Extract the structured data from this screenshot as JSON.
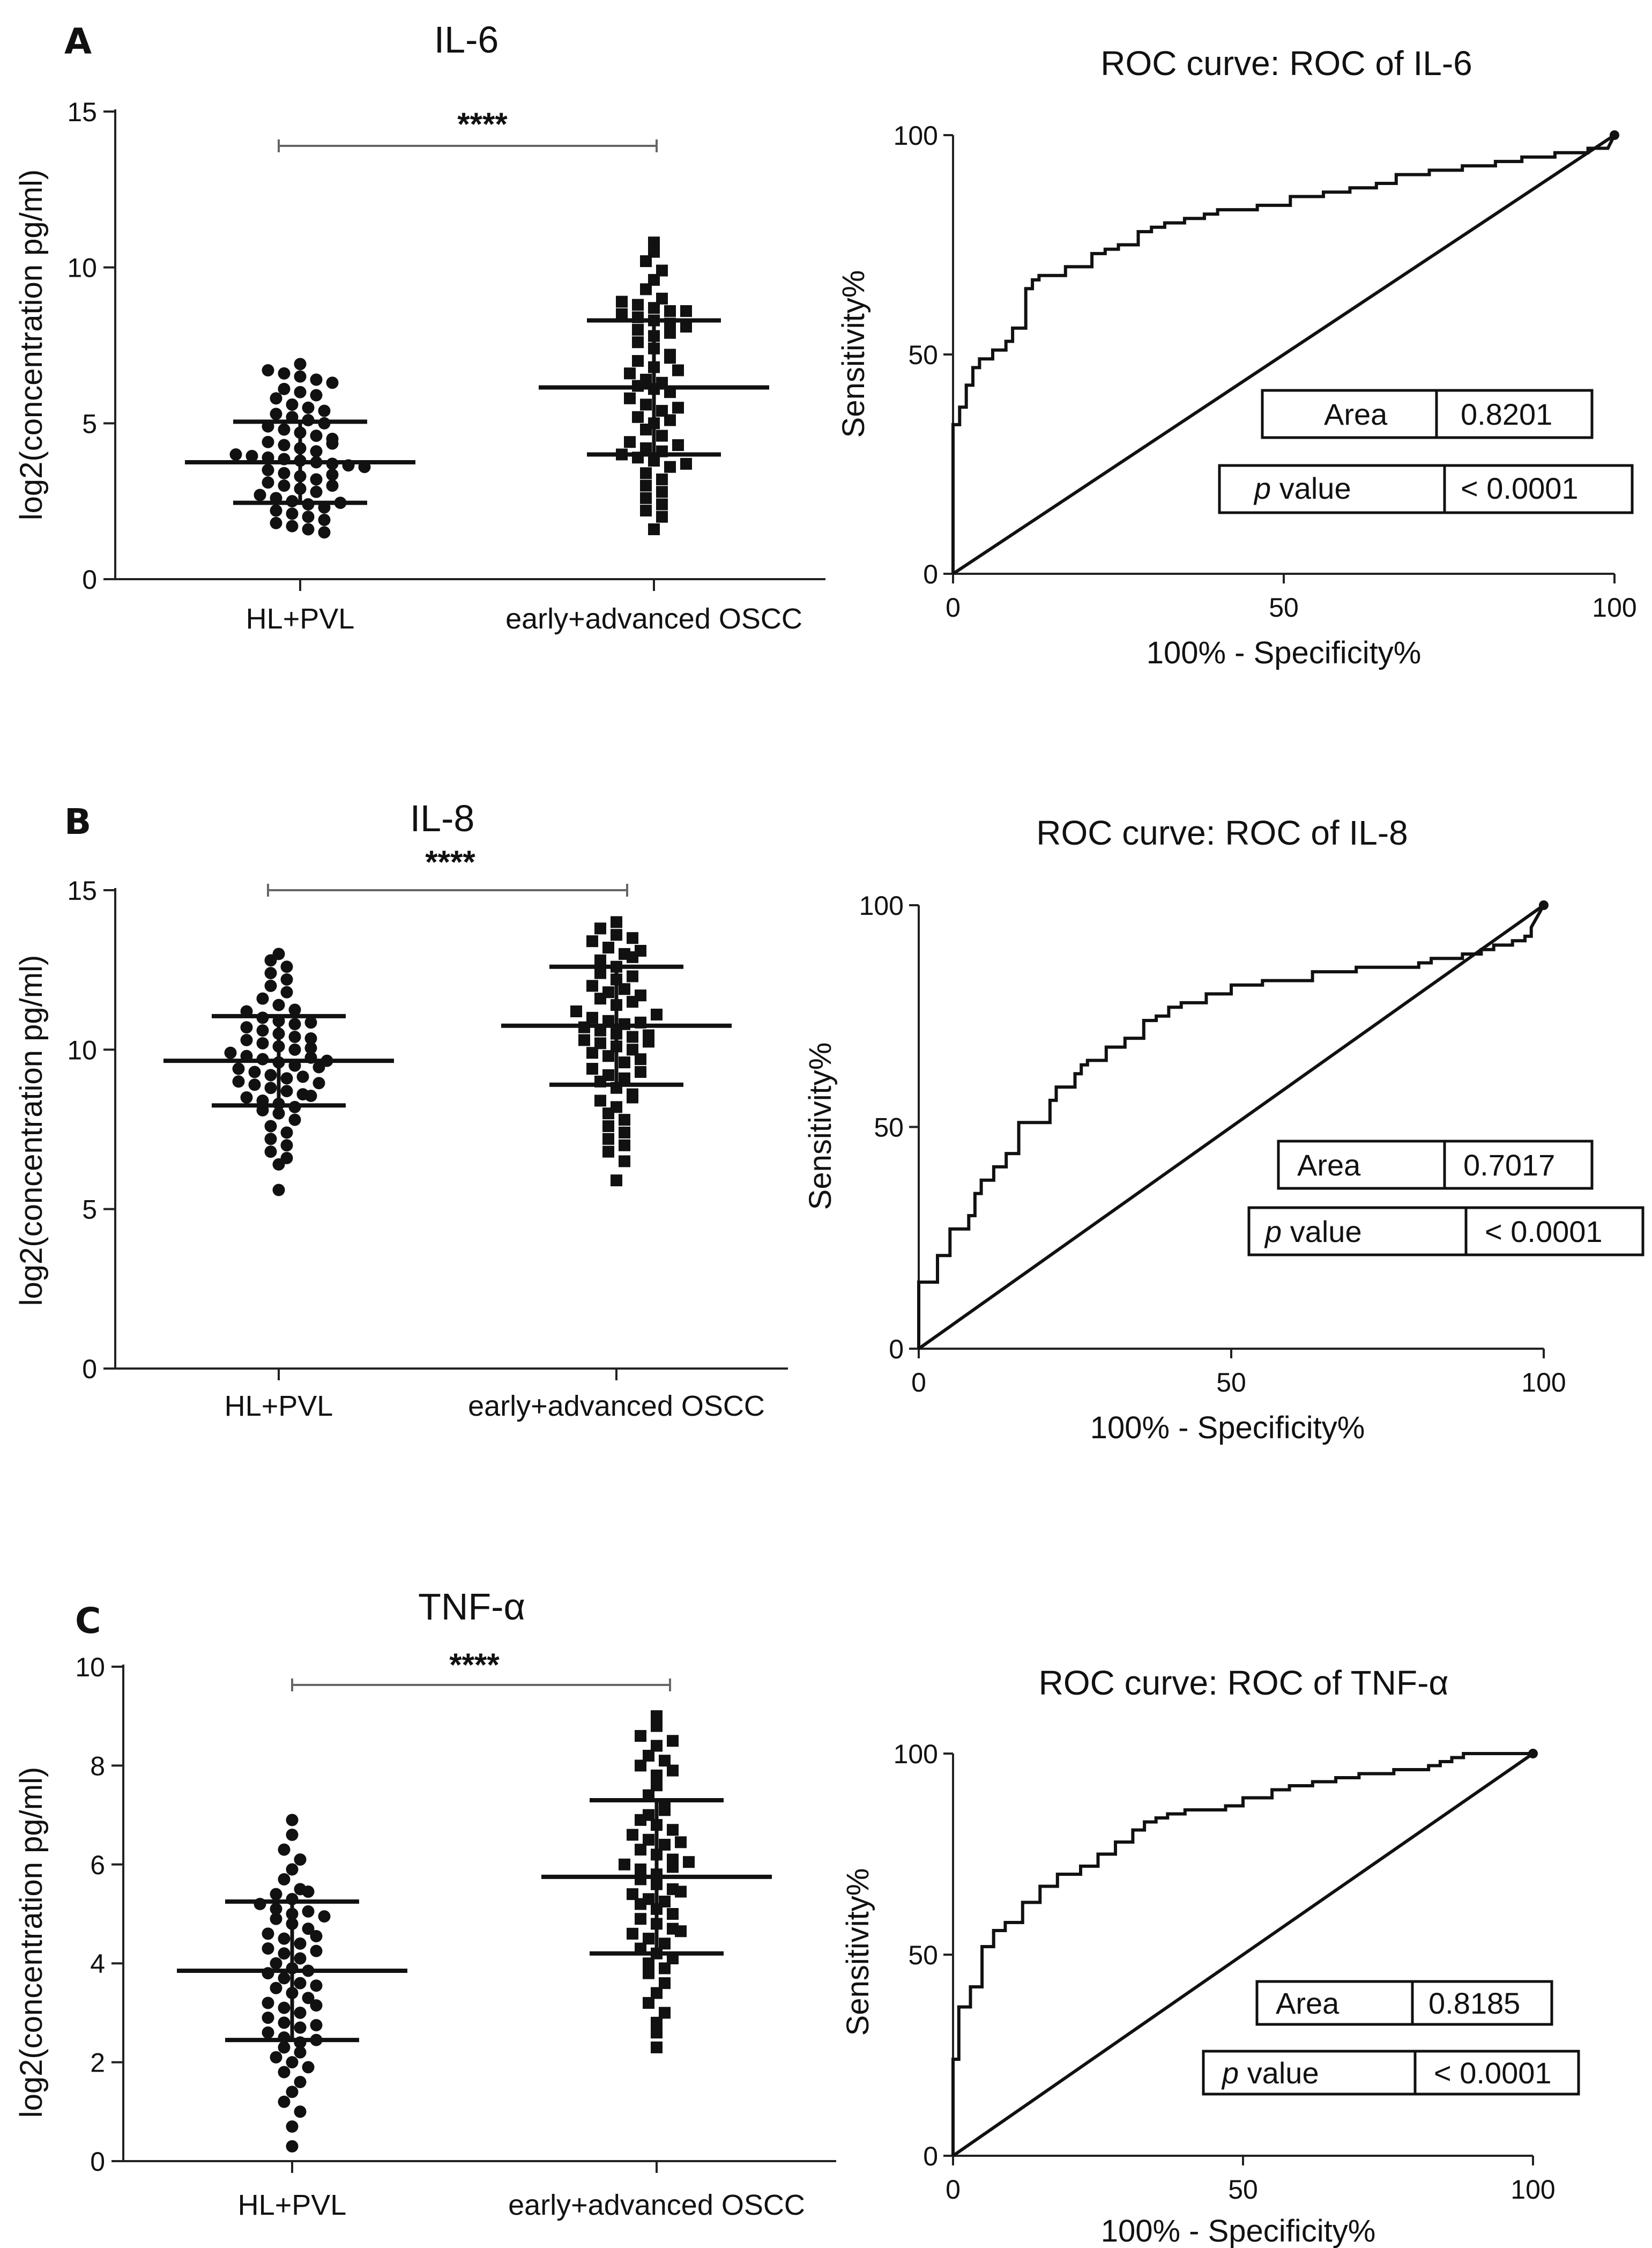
{
  "chart_data": [
    {
      "type": "scatter",
      "panel_letter": "A",
      "title": "IL-6",
      "ylabel": "log2(concentration pg/ml)",
      "ylim": [
        0,
        15
      ],
      "yticks": [
        0,
        5,
        10,
        15
      ],
      "categories": [
        "HL+PVL",
        "early+advanced OSCC"
      ],
      "significance": "****",
      "groups": [
        {
          "name": "HL+PVL",
          "marker": "circle",
          "mean": 3.75,
          "sd_low": 2.45,
          "sd_high": 5.05,
          "values": [
            6.9,
            6.7,
            6.6,
            6.5,
            6.4,
            6.3,
            6.1,
            6.0,
            5.9,
            5.8,
            5.6,
            5.5,
            5.4,
            5.3,
            5.2,
            5.1,
            5.0,
            4.9,
            4.8,
            4.7,
            4.6,
            4.5,
            4.4,
            4.3,
            4.2,
            4.1,
            4.0,
            3.95,
            3.9,
            3.85,
            3.8,
            3.75,
            3.7,
            3.65,
            3.6,
            3.5,
            3.4,
            3.3,
            3.2,
            3.1,
            3.0,
            2.9,
            2.8,
            2.7,
            2.6,
            2.5,
            2.4,
            2.3,
            2.2,
            2.1,
            2.0,
            1.9,
            1.8,
            1.7,
            1.6,
            1.5,
            2.45,
            3.35,
            4.35,
            3.0
          ]
        },
        {
          "name": "early+advanced OSCC",
          "marker": "square",
          "mean": 6.15,
          "sd_low": 4.0,
          "sd_high": 8.3,
          "values": [
            10.8,
            10.5,
            10.2,
            9.9,
            9.6,
            9.3,
            9.0,
            8.9,
            8.8,
            8.7,
            8.6,
            8.5,
            8.4,
            8.3,
            8.2,
            8.1,
            8.0,
            7.8,
            7.6,
            7.4,
            7.2,
            7.0,
            6.8,
            6.6,
            6.4,
            6.2,
            6.1,
            6.0,
            5.8,
            5.6,
            5.4,
            5.2,
            5.0,
            4.8,
            4.6,
            4.4,
            4.2,
            4.1,
            4.0,
            3.9,
            3.8,
            3.6,
            3.4,
            3.2,
            3.0,
            2.8,
            2.6,
            2.4,
            2.2,
            2.0,
            1.6,
            7.9,
            6.3,
            5.5,
            4.3,
            3.7,
            8.6,
            7.1,
            6.7,
            5.1
          ]
        }
      ]
    },
    {
      "type": "line",
      "title": "ROC curve: ROC of IL-6",
      "xlabel": "100% - Specificity%",
      "ylabel": "Sensitivity%",
      "xlim": [
        0,
        100
      ],
      "ylim": [
        0,
        100
      ],
      "xticks": [
        0,
        50,
        100
      ],
      "yticks": [
        0,
        50,
        100
      ],
      "series": [
        {
          "name": "ROC",
          "x": [
            0,
            0,
            1,
            1,
            2,
            2,
            3,
            3,
            4,
            4,
            6,
            6,
            8,
            8,
            9,
            9,
            11,
            11,
            12,
            12,
            13,
            13,
            17,
            17,
            21,
            21,
            23,
            23,
            25,
            25,
            28,
            28,
            30,
            30,
            32,
            32,
            35,
            35,
            38,
            38,
            40,
            40,
            46,
            46,
            51,
            51,
            56,
            56,
            60,
            60,
            64,
            64,
            67,
            67,
            72,
            72,
            77,
            77,
            82,
            82,
            86,
            86,
            91,
            91,
            96,
            96,
            99,
            100
          ],
          "y": [
            0,
            34,
            34,
            38,
            38,
            43,
            43,
            47,
            47,
            49,
            49,
            51,
            51,
            53,
            53,
            56,
            56,
            65,
            65,
            67,
            67,
            68,
            68,
            70,
            70,
            73,
            73,
            74,
            74,
            75,
            75,
            78,
            78,
            79,
            79,
            80,
            80,
            81,
            81,
            82,
            82,
            83,
            83,
            84,
            84,
            86,
            86,
            87,
            87,
            88,
            88,
            89,
            89,
            91,
            91,
            92,
            92,
            93,
            93,
            94,
            94,
            95,
            95,
            96,
            96,
            97,
            97,
            100
          ]
        },
        {
          "name": "Reference",
          "x": [
            0,
            100
          ],
          "y": [
            0,
            100
          ]
        }
      ],
      "stats": {
        "area_label": "Area",
        "area": "0.8201",
        "p_label": "p",
        "p_text": "value",
        "p": "< 0.0001"
      }
    },
    {
      "type": "scatter",
      "panel_letter": "B",
      "title": "IL-8",
      "ylabel": "log2(concentration pg/ml)",
      "ylim": [
        0,
        15
      ],
      "yticks": [
        0,
        5,
        10,
        15
      ],
      "categories": [
        "HL+PVL",
        "early+advanced OSCC"
      ],
      "significance": "****",
      "groups": [
        {
          "name": "HL+PVL",
          "marker": "circle",
          "mean": 9.65,
          "sd_low": 8.25,
          "sd_high": 11.05,
          "values": [
            13.0,
            12.8,
            12.6,
            12.4,
            12.2,
            12.0,
            11.8,
            11.6,
            11.4,
            11.2,
            11.0,
            10.9,
            10.8,
            10.7,
            10.6,
            10.5,
            10.4,
            10.3,
            10.2,
            10.1,
            10.0,
            9.9,
            9.8,
            9.7,
            9.6,
            9.5,
            9.4,
            9.3,
            9.2,
            9.1,
            9.0,
            8.9,
            8.8,
            8.7,
            8.6,
            8.5,
            8.4,
            8.3,
            8.2,
            8.1,
            8.0,
            7.8,
            7.6,
            7.4,
            7.2,
            7.0,
            6.8,
            6.6,
            6.4,
            5.6,
            9.75,
            10.35,
            9.15,
            8.55,
            11.25,
            10.85,
            9.45,
            8.95,
            10.05,
            9.65
          ]
        },
        {
          "name": "early+advanced OSCC",
          "marker": "square",
          "mean": 10.75,
          "sd_low": 8.9,
          "sd_high": 12.6,
          "values": [
            14.0,
            13.8,
            13.6,
            13.4,
            13.2,
            13.0,
            12.8,
            12.6,
            12.4,
            12.2,
            12.0,
            11.8,
            11.6,
            11.4,
            11.2,
            11.0,
            10.9,
            10.8,
            10.7,
            10.6,
            10.5,
            10.4,
            10.3,
            10.2,
            10.1,
            10.0,
            9.9,
            9.8,
            9.6,
            9.4,
            9.2,
            9.0,
            8.8,
            8.6,
            8.4,
            8.2,
            8.0,
            7.8,
            7.6,
            7.4,
            7.2,
            7.0,
            6.8,
            6.5,
            5.9,
            13.5,
            12.9,
            11.9,
            11.5,
            10.85,
            10.25,
            9.7,
            9.1,
            8.5,
            12.3,
            11.1,
            10.45,
            9.3,
            13.1,
            11.7
          ]
        }
      ]
    },
    {
      "type": "line",
      "title": "ROC curve: ROC of IL-8",
      "xlabel": "100% - Specificity%",
      "ylabel": "Sensitivity%",
      "xlim": [
        0,
        100
      ],
      "ylim": [
        0,
        100
      ],
      "xticks": [
        0,
        50,
        100
      ],
      "yticks": [
        0,
        50,
        100
      ],
      "series": [
        {
          "name": "ROC",
          "x": [
            0,
            0,
            3,
            3,
            5,
            5,
            8,
            8,
            9,
            9,
            10,
            10,
            12,
            12,
            14,
            14,
            16,
            16,
            21,
            21,
            22,
            22,
            25,
            25,
            26,
            26,
            27,
            27,
            30,
            30,
            33,
            33,
            36,
            36,
            38,
            38,
            40,
            40,
            42,
            42,
            46,
            46,
            50,
            50,
            55,
            55,
            63,
            63,
            70,
            70,
            80,
            80,
            82,
            82,
            87,
            87,
            90,
            90,
            92,
            92,
            95,
            95,
            97,
            97,
            98,
            98,
            100
          ],
          "y": [
            0,
            15,
            15,
            21,
            21,
            27,
            27,
            30,
            30,
            35,
            35,
            38,
            38,
            41,
            41,
            44,
            44,
            51,
            51,
            56,
            56,
            59,
            59,
            62,
            62,
            64,
            64,
            65,
            65,
            68,
            68,
            70,
            70,
            74,
            74,
            75,
            75,
            77,
            77,
            78,
            78,
            80,
            80,
            82,
            82,
            83,
            83,
            85,
            85,
            86,
            86,
            87,
            87,
            88,
            88,
            89,
            89,
            90,
            90,
            91,
            91,
            92,
            92,
            93,
            93,
            95,
            100
          ]
        },
        {
          "name": "Reference",
          "x": [
            0,
            100
          ],
          "y": [
            0,
            100
          ]
        }
      ],
      "stats": {
        "area_label": "Area",
        "area": "0.7017",
        "p_label": "p",
        "p_text": "value",
        "p": "< 0.0001"
      }
    },
    {
      "type": "scatter",
      "panel_letter": "C",
      "title": "TNF-α",
      "ylabel": "log2(concentration pg/ml)",
      "ylim": [
        0,
        10
      ],
      "yticks": [
        0,
        2,
        4,
        6,
        8,
        10
      ],
      "categories": [
        "HL+PVL",
        "early+advanced OSCC"
      ],
      "significance": "****",
      "groups": [
        {
          "name": "HL+PVL",
          "marker": "circle",
          "mean": 3.85,
          "sd_low": 2.45,
          "sd_high": 5.25,
          "values": [
            6.9,
            6.6,
            6.3,
            6.1,
            5.9,
            5.7,
            5.5,
            5.4,
            5.3,
            5.2,
            5.1,
            5.0,
            4.9,
            4.8,
            4.7,
            4.6,
            4.5,
            4.4,
            4.3,
            4.2,
            4.1,
            4.0,
            3.9,
            3.8,
            3.7,
            3.6,
            3.5,
            3.4,
            3.3,
            3.2,
            3.1,
            3.0,
            2.9,
            2.8,
            2.7,
            2.6,
            2.5,
            2.4,
            2.3,
            2.2,
            2.1,
            2.0,
            1.8,
            1.6,
            1.4,
            1.2,
            1.0,
            0.7,
            0.3,
            4.55,
            3.85,
            3.15,
            5.45,
            2.45,
            4.25,
            3.55,
            5.05,
            2.75,
            1.9,
            4.95
          ]
        },
        {
          "name": "early+advanced OSCC",
          "marker": "square",
          "mean": 5.75,
          "sd_low": 4.2,
          "sd_high": 7.3,
          "values": [
            9.0,
            8.8,
            8.6,
            8.4,
            8.2,
            8.0,
            7.8,
            7.6,
            7.4,
            7.2,
            7.0,
            6.9,
            6.8,
            6.7,
            6.6,
            6.5,
            6.4,
            6.3,
            6.2,
            6.1,
            6.0,
            5.9,
            5.8,
            5.7,
            5.6,
            5.5,
            5.4,
            5.3,
            5.2,
            5.1,
            5.0,
            4.9,
            4.8,
            4.7,
            4.6,
            4.5,
            4.4,
            4.3,
            4.2,
            4.1,
            4.0,
            3.8,
            3.6,
            3.4,
            3.2,
            3.0,
            2.8,
            2.6,
            2.3,
            8.5,
            7.9,
            7.1,
            6.45,
            5.95,
            5.25,
            4.65,
            3.9,
            8.1,
            6.05,
            5.45
          ]
        }
      ]
    },
    {
      "type": "line",
      "title": "ROC curve: ROC of TNF-α",
      "xlabel": "100% - Specificity%",
      "ylabel": "Sensitivity%",
      "xlim": [
        0,
        100
      ],
      "ylim": [
        0,
        100
      ],
      "xticks": [
        0,
        50,
        100
      ],
      "yticks": [
        0,
        50,
        100
      ],
      "series": [
        {
          "name": "ROC",
          "x": [
            0,
            0,
            1,
            1,
            3,
            3,
            5,
            5,
            7,
            7,
            9,
            9,
            12,
            12,
            15,
            15,
            18,
            18,
            22,
            22,
            25,
            25,
            28,
            28,
            31,
            31,
            33,
            33,
            35,
            35,
            37,
            37,
            40,
            40,
            47,
            47,
            50,
            50,
            55,
            55,
            58,
            58,
            62,
            62,
            66,
            66,
            70,
            70,
            76,
            76,
            82,
            82,
            84,
            84,
            86,
            86,
            88,
            88,
            93,
            93,
            95,
            95,
            100
          ],
          "y": [
            0,
            24,
            24,
            37,
            37,
            42,
            42,
            52,
            52,
            56,
            56,
            58,
            58,
            63,
            63,
            67,
            67,
            70,
            70,
            72,
            72,
            75,
            75,
            78,
            78,
            81,
            81,
            83,
            83,
            84,
            84,
            85,
            85,
            86,
            86,
            87,
            87,
            89,
            89,
            91,
            91,
            92,
            92,
            93,
            93,
            94,
            94,
            95,
            95,
            96,
            96,
            97,
            97,
            98,
            98,
            99,
            99,
            100,
            100,
            100,
            100,
            100,
            100
          ]
        },
        {
          "name": "Reference",
          "x": [
            0,
            100
          ],
          "y": [
            0,
            100
          ]
        }
      ],
      "stats": {
        "area_label": "Area",
        "area": "0.8185",
        "p_label": "p",
        "p_text": "value",
        "p": "< 0.0001"
      }
    }
  ]
}
